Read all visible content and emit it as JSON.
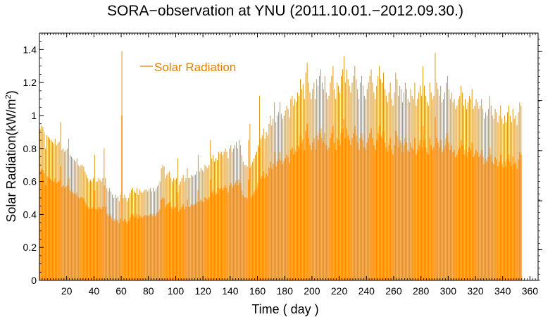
{
  "chart_data": {
    "type": "bar",
    "title": "SORA−observation at YNU (2011.10.01.−2012.09.30.)",
    "xlabel": "Time ( day )",
    "ylabel_main": "Solar Radiation(kW/m",
    "ylabel_sup": "2",
    "ylabel_close": ")",
    "xlim": [
      0,
      366
    ],
    "ylim": [
      0,
      1.5
    ],
    "x_ticks": [
      20,
      40,
      60,
      80,
      100,
      120,
      140,
      160,
      180,
      200,
      220,
      240,
      260,
      280,
      300,
      320,
      340,
      360
    ],
    "y_ticks": [
      0,
      0.2,
      0.4,
      0.6,
      0.8,
      1,
      1.2,
      1.4
    ],
    "y_tick_labels": [
      "0",
      "0.2",
      "0.4",
      "0.6",
      "0.8",
      "1",
      "1.2",
      "1.4"
    ],
    "grid": false,
    "legend_position": "top-left",
    "colors": {
      "fill": "#ff8c00",
      "line": "#d98a00"
    },
    "series": [
      {
        "name": "Solar Radiation",
        "daily_max": [
          0.92,
          0.94,
          0.93,
          0.9,
          0.8,
          0.88,
          0.87,
          0.86,
          0.85,
          0.84,
          0.83,
          0.86,
          0.82,
          0.83,
          0.84,
          0.96,
          0.79,
          0.8,
          0.78,
          0.79,
          0.8,
          0.86,
          0.76,
          0.75,
          0.74,
          0.73,
          0.72,
          0.74,
          0.7,
          0.69,
          0.7,
          0.7,
          0.69,
          0.66,
          0.64,
          0.62,
          0.6,
          0.61,
          0.6,
          0.62,
          0.76,
          0.6,
          0.6,
          0.62,
          0.61,
          0.6,
          0.62,
          0.8,
          0.62,
          0.56,
          0.54,
          0.56,
          0.54,
          0.52,
          0.5,
          0.52,
          0.5,
          0.51,
          0.48,
          0.52,
          1.39,
          0.5,
          0.52,
          0.5,
          0.48,
          0.5,
          0.53,
          0.55,
          0.56,
          0.54,
          0.53,
          0.56,
          0.52,
          0.55,
          0.54,
          0.53,
          0.54,
          0.55,
          0.55,
          0.54,
          0.55,
          0.56,
          0.54,
          0.56,
          0.54,
          0.55,
          0.57,
          0.58,
          0.6,
          0.68,
          0.7,
          0.69,
          0.62,
          0.64,
          0.65,
          0.66,
          0.62,
          0.6,
          0.62,
          0.61,
          0.62,
          0.74,
          0.58,
          0.6,
          0.62,
          0.64,
          0.6,
          0.62,
          0.68,
          0.62,
          0.62,
          0.64,
          0.63,
          0.64,
          0.64,
          0.66,
          0.76,
          0.66,
          0.68,
          0.67,
          0.66,
          0.7,
          0.69,
          0.68,
          0.7,
          0.85,
          0.74,
          0.76,
          0.72,
          0.74,
          0.73,
          0.78,
          0.77,
          0.78,
          0.76,
          0.78,
          0.8,
          0.78,
          0.74,
          0.8,
          0.82,
          0.78,
          0.8,
          0.82,
          0.84,
          0.8,
          0.85,
          0.82,
          0.76,
          0.72,
          0.7,
          0.7,
          0.69,
          0.85,
          0.95,
          0.7,
          0.72,
          0.74,
          0.76,
          0.78,
          0.82,
          1.12,
          0.86,
          0.88,
          0.92,
          0.86,
          0.9,
          0.88,
          0.95,
          1.0,
          0.94,
          0.98,
          1.08,
          0.96,
          1.0,
          1.02,
          1.08,
          1.01,
          0.98,
          1.0,
          1.03,
          1.06,
          1.04,
          0.99,
          1.1,
          1.12,
          1.06,
          1.1,
          1.08,
          1.14,
          1.12,
          1.22,
          1.16,
          1.19,
          1.1,
          1.26,
          1.32,
          1.2,
          1.14,
          1.1,
          1.16,
          1.2,
          1.1,
          1.22,
          1.18,
          1.24,
          1.28,
          1.2,
          1.16,
          1.24,
          1.14,
          1.1,
          1.12,
          1.2,
          1.24,
          1.3,
          1.16,
          1.1,
          1.2,
          1.18,
          1.14,
          1.24,
          1.28,
          1.36,
          1.2,
          1.28,
          1.22,
          1.18,
          1.14,
          1.2,
          1.24,
          1.3,
          1.22,
          1.16,
          1.1,
          1.2,
          1.24,
          1.18,
          1.12,
          1.1,
          1.16,
          1.2,
          1.24,
          1.28,
          1.2,
          1.14,
          1.1,
          1.18,
          1.24,
          1.3,
          1.22,
          1.2,
          1.26,
          1.16,
          1.12,
          1.08,
          1.14,
          1.2,
          1.1,
          1.06,
          1.14,
          1.26,
          1.22,
          1.12,
          1.18,
          1.16,
          1.08,
          1.14,
          1.2,
          1.16,
          1.1,
          1.08,
          1.16,
          1.12,
          1.1,
          1.2,
          1.06,
          1.1,
          1.14,
          1.18,
          1.12,
          1.3,
          1.18,
          1.12,
          1.08,
          1.06,
          1.2,
          1.14,
          1.1,
          1.12,
          1.38,
          1.2,
          1.16,
          1.12,
          1.18,
          1.08,
          1.1,
          1.14,
          1.2,
          1.24,
          1.16,
          1.1,
          1.14,
          1.08,
          1.1,
          1.04,
          1.06,
          1.1,
          1.12,
          1.18,
          1.14,
          1.06,
          1.1,
          1.04,
          1.08,
          1.12,
          1.1,
          1.16,
          1.04,
          1.06,
          1.1,
          1.08,
          1.04,
          1.06,
          1.1,
          1.04,
          0.98,
          1.02,
          1.0,
          1.04,
          1.12,
          1.06,
          1.0,
          0.98,
          1.04,
          1.02,
          0.96,
          1.0,
          1.06,
          0.98,
          0.95,
          1.0,
          0.96,
          1.02,
          1.06,
          1.0,
          0.96,
          1.04,
          0.98,
          1.0,
          0.94,
          1.02,
          1.08,
          1.06
        ]
      }
    ]
  }
}
